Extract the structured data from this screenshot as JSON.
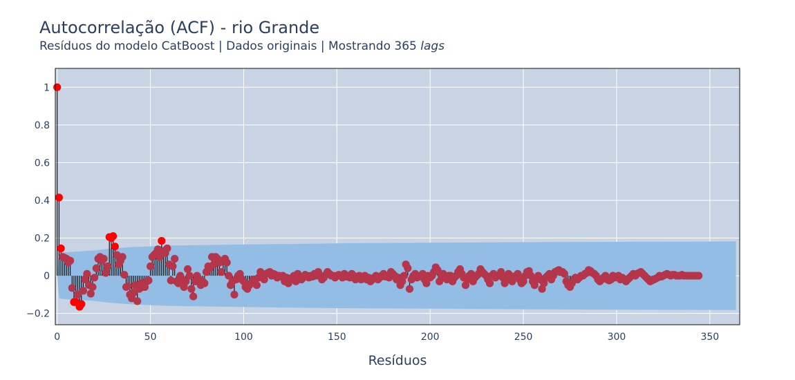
{
  "title": "Autocorrelação (ACF) - rio Grande",
  "subtitle_main": "Resíduos do modelo CatBoost | Dados originais | Mostrando 365 ",
  "subtitle_em": "lags",
  "chart_data": {
    "type": "scatter",
    "title": "Autocorrelação (ACF) - rio Grande",
    "subtitle": "Resíduos do modelo CatBoost | Dados originais | Mostrando 365 lags",
    "xlabel": "Resíduos",
    "ylabel": "",
    "xlim": [
      -1,
      366
    ],
    "ylim": [
      -0.26,
      1.1
    ],
    "x_ticks": [
      0,
      50,
      100,
      150,
      200,
      250,
      300,
      350
    ],
    "x_tick_labels": [
      "0",
      "50",
      "100",
      "150",
      "200",
      "250",
      "300",
      "350"
    ],
    "y_ticks": [
      -0.2,
      0,
      0.2,
      0.4,
      0.6,
      0.8,
      1
    ],
    "y_tick_labels": [
      "−0.2",
      "0",
      "0.2",
      "0.4",
      "0.6",
      "0.8",
      "1"
    ],
    "grid": true,
    "legend": "none",
    "colors": {
      "plot_bg": "#c8d4e3",
      "band": "#93bde4",
      "stem": "#111111",
      "significant": "#ff0000",
      "not_significant": "#b5354b",
      "grid": "#ffffff",
      "text": "#2a3f5f"
    },
    "lags_shown": 365,
    "confidence_band_upper": [
      [
        0,
        0
      ],
      [
        1,
        0.118
      ],
      [
        2,
        0.122
      ],
      [
        4,
        0.124
      ],
      [
        10,
        0.128
      ],
      [
        20,
        0.134
      ],
      [
        30,
        0.145
      ],
      [
        40,
        0.152
      ],
      [
        50,
        0.156
      ],
      [
        60,
        0.16
      ],
      [
        100,
        0.166
      ],
      [
        150,
        0.172
      ],
      [
        200,
        0.175
      ],
      [
        250,
        0.178
      ],
      [
        300,
        0.18
      ],
      [
        364,
        0.182
      ]
    ],
    "acf_key_points": [
      {
        "lag": 0,
        "acf": 1.0
      },
      {
        "lag": 1,
        "acf": 0.415
      },
      {
        "lag": 2,
        "acf": 0.145
      },
      {
        "lag": 9,
        "acf": -0.14
      },
      {
        "lag": 12,
        "acf": -0.165
      },
      {
        "lag": 13,
        "acf": -0.15
      },
      {
        "lag": 28,
        "acf": 0.205
      },
      {
        "lag": 29,
        "acf": 0.2
      },
      {
        "lag": 30,
        "acf": 0.21
      },
      {
        "lag": 31,
        "acf": 0.155
      },
      {
        "lag": 56,
        "acf": 0.185
      },
      {
        "lag": 95,
        "acf": -0.1
      },
      {
        "lag": 188,
        "acf": 0.06
      },
      {
        "lag": 191,
        "acf": -0.07
      },
      {
        "lag": 268,
        "acf": -0.07
      }
    ],
    "acf_values": [
      1.0,
      0.415,
      0.145,
      0.1,
      0.095,
      0.09,
      0.07,
      0.08,
      -0.065,
      -0.14,
      -0.14,
      -0.1,
      -0.165,
      -0.15,
      -0.08,
      -0.02,
      0.01,
      -0.05,
      -0.095,
      -0.06,
      -0.01,
      0.04,
      0.09,
      0.1,
      0.08,
      0.09,
      0.015,
      0.05,
      0.205,
      0.2,
      0.21,
      0.155,
      0.11,
      0.06,
      0.08,
      0.1,
      0.005,
      -0.06,
      -0.055,
      -0.1,
      -0.12,
      -0.09,
      -0.05,
      -0.135,
      -0.07,
      -0.04,
      -0.06,
      -0.06,
      -0.03,
      -0.025,
      0.05,
      0.1,
      0.11,
      0.12,
      0.14,
      0.1,
      0.185,
      0.13,
      0.12,
      0.145,
      0.06,
      -0.025,
      0.05,
      0.09,
      -0.03,
      -0.04,
      0.0,
      -0.02,
      -0.06,
      -0.03,
      0.035,
      0.0,
      -0.07,
      -0.11,
      -0.03,
      0.0,
      -0.02,
      -0.05,
      -0.03,
      -0.04,
      0.02,
      0.05,
      0.04,
      0.1,
      0.06,
      0.1,
      0.09,
      0.07,
      0.02,
      0.08,
      0.09,
      0.07,
      0.0,
      -0.05,
      -0.03,
      -0.1,
      -0.02,
      0.0,
      0.01,
      -0.02,
      -0.03,
      -0.06,
      -0.07,
      -0.05,
      -0.04,
      -0.02,
      -0.03,
      -0.05,
      -0.01,
      0.02,
      0.0,
      -0.02,
      0.01,
      0.015,
      0.02,
      0.0,
      0.01,
      0.005,
      -0.01,
      0.0,
      -0.005,
      0.0,
      -0.03,
      -0.01,
      -0.04,
      -0.02,
      -0.01,
      0.0,
      -0.03,
      0.01,
      -0.01,
      -0.02,
      -0.01,
      0.005,
      0.0,
      -0.01,
      0.0,
      -0.005,
      0.01,
      0.0,
      0.02,
      0.0,
      -0.02,
      -0.01,
      0.005,
      0.02,
      0.01,
      0.0,
      0.0,
      -0.01,
      0.0,
      0.005,
      0.0,
      -0.01,
      0.01,
      -0.005,
      0.0,
      -0.01,
      0.01,
      0.0,
      -0.02,
      -0.01,
      0.0,
      -0.02,
      -0.01,
      0.0,
      -0.02,
      -0.01,
      -0.03,
      -0.02,
      -0.01,
      0.0,
      -0.02,
      -0.01,
      0.0,
      0.01,
      -0.005,
      0.0,
      -0.01,
      0.02,
      0.01,
      0.0,
      -0.02,
      -0.01,
      -0.05,
      -0.03,
      0.0,
      0.06,
      0.04,
      -0.07,
      -0.02,
      0.0,
      0.01,
      -0.01,
      -0.005,
      0.0,
      0.01,
      -0.02,
      -0.04,
      0.0,
      -0.01,
      0.0,
      0.02,
      0.045,
      0.03,
      -0.03,
      0.0,
      0.01,
      -0.01,
      -0.02,
      0.0,
      0.0,
      -0.03,
      -0.01,
      0.0,
      0.02,
      0.035,
      0.01,
      -0.01,
      -0.05,
      -0.02,
      0.0,
      0.01,
      -0.03,
      -0.01,
      0.0,
      0.01,
      0.035,
      0.02,
      0.01,
      0.0,
      -0.02,
      -0.04,
      0.0,
      0.01,
      -0.01,
      0.0,
      0.0,
      0.02,
      -0.01,
      -0.04,
      -0.02,
      0.01,
      0.0,
      -0.03,
      -0.01,
      0.0,
      0.01,
      -0.02,
      -0.04,
      -0.03,
      0.0,
      0.02,
      0.025,
      0.0,
      -0.03,
      -0.05,
      -0.02,
      0.0,
      -0.02,
      -0.07,
      -0.04,
      -0.01,
      0.0,
      0.01,
      -0.02,
      0.0,
      0.02,
      0.025,
      0.03,
      0.02,
      0.02,
      0.01,
      -0.03,
      -0.05,
      -0.06,
      -0.04,
      -0.02,
      -0.01,
      -0.02,
      -0.01,
      0.0,
      0.0,
      0.01,
      0.015,
      0.03,
      0.025,
      0.015,
      0.01,
      0.0,
      -0.02,
      -0.03,
      -0.02,
      -0.01,
      0.0,
      -0.02,
      -0.025,
      -0.02,
      0.0,
      -0.01,
      -0.005,
      0.0,
      -0.02,
      -0.01,
      -0.02,
      -0.03,
      -0.02,
      -0.01,
      0.0,
      0.01,
      0.0,
      0.01,
      0.015,
      0.02,
      0.01,
      0.0,
      -0.01,
      -0.02,
      -0.03,
      -0.025,
      -0.02,
      -0.015,
      -0.01,
      0.0,
      -0.005,
      0.0,
      0.005,
      0.01,
      0.005,
      0.0,
      0.005,
      0.005,
      0.0,
      0.0,
      0.0,
      0.005,
      0.0,
      0.0,
      0.0,
      0.0,
      0.0,
      0.0,
      0.0,
      0.0,
      0.0
    ]
  }
}
